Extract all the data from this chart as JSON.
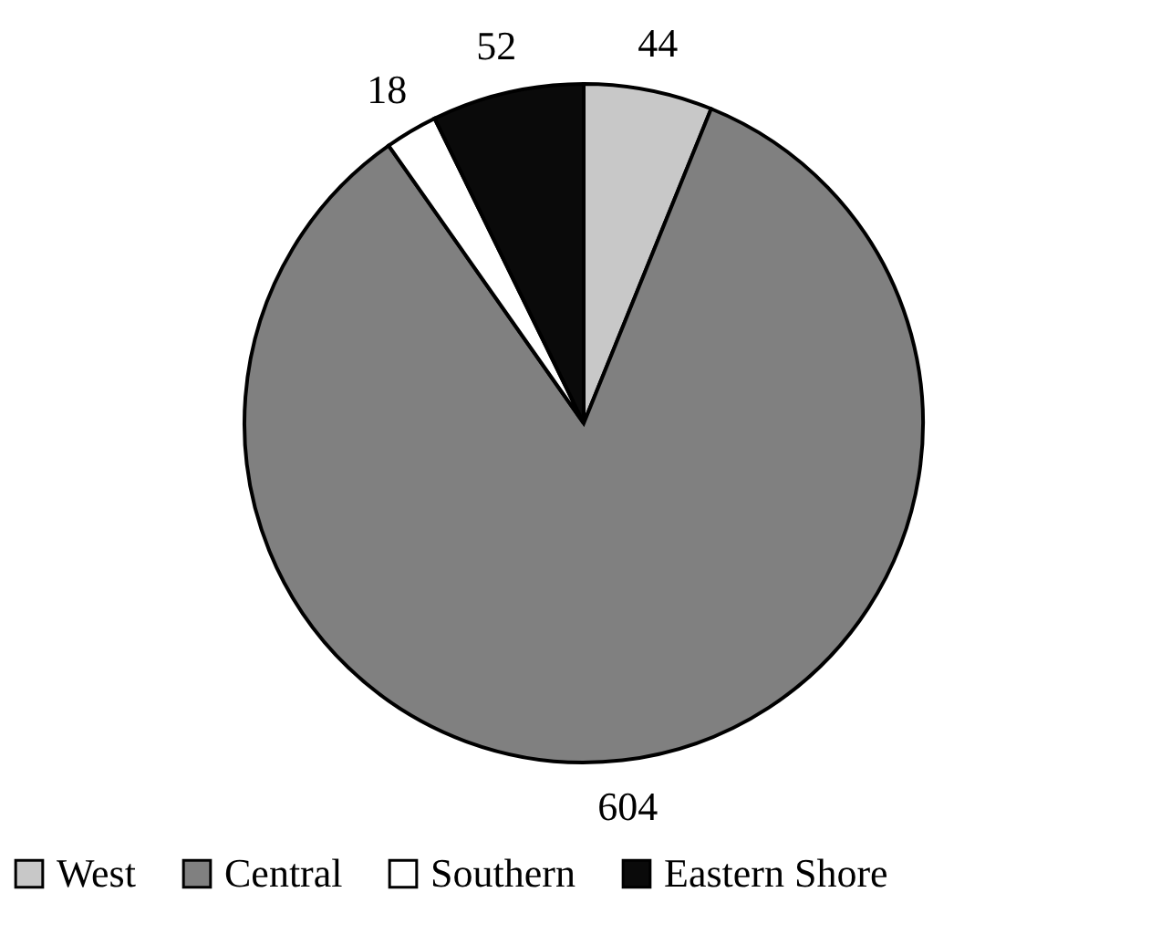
{
  "chart_data": {
    "type": "pie",
    "categories": [
      "West",
      "Central",
      "Southern",
      "Eastern Shore"
    ],
    "values": [
      44,
      604,
      18,
      52
    ],
    "colors": [
      "#c8c8c8",
      "#808080",
      "#ffffff",
      "#0a0a0a"
    ],
    "data_labels": true,
    "legend": "bottom"
  }
}
